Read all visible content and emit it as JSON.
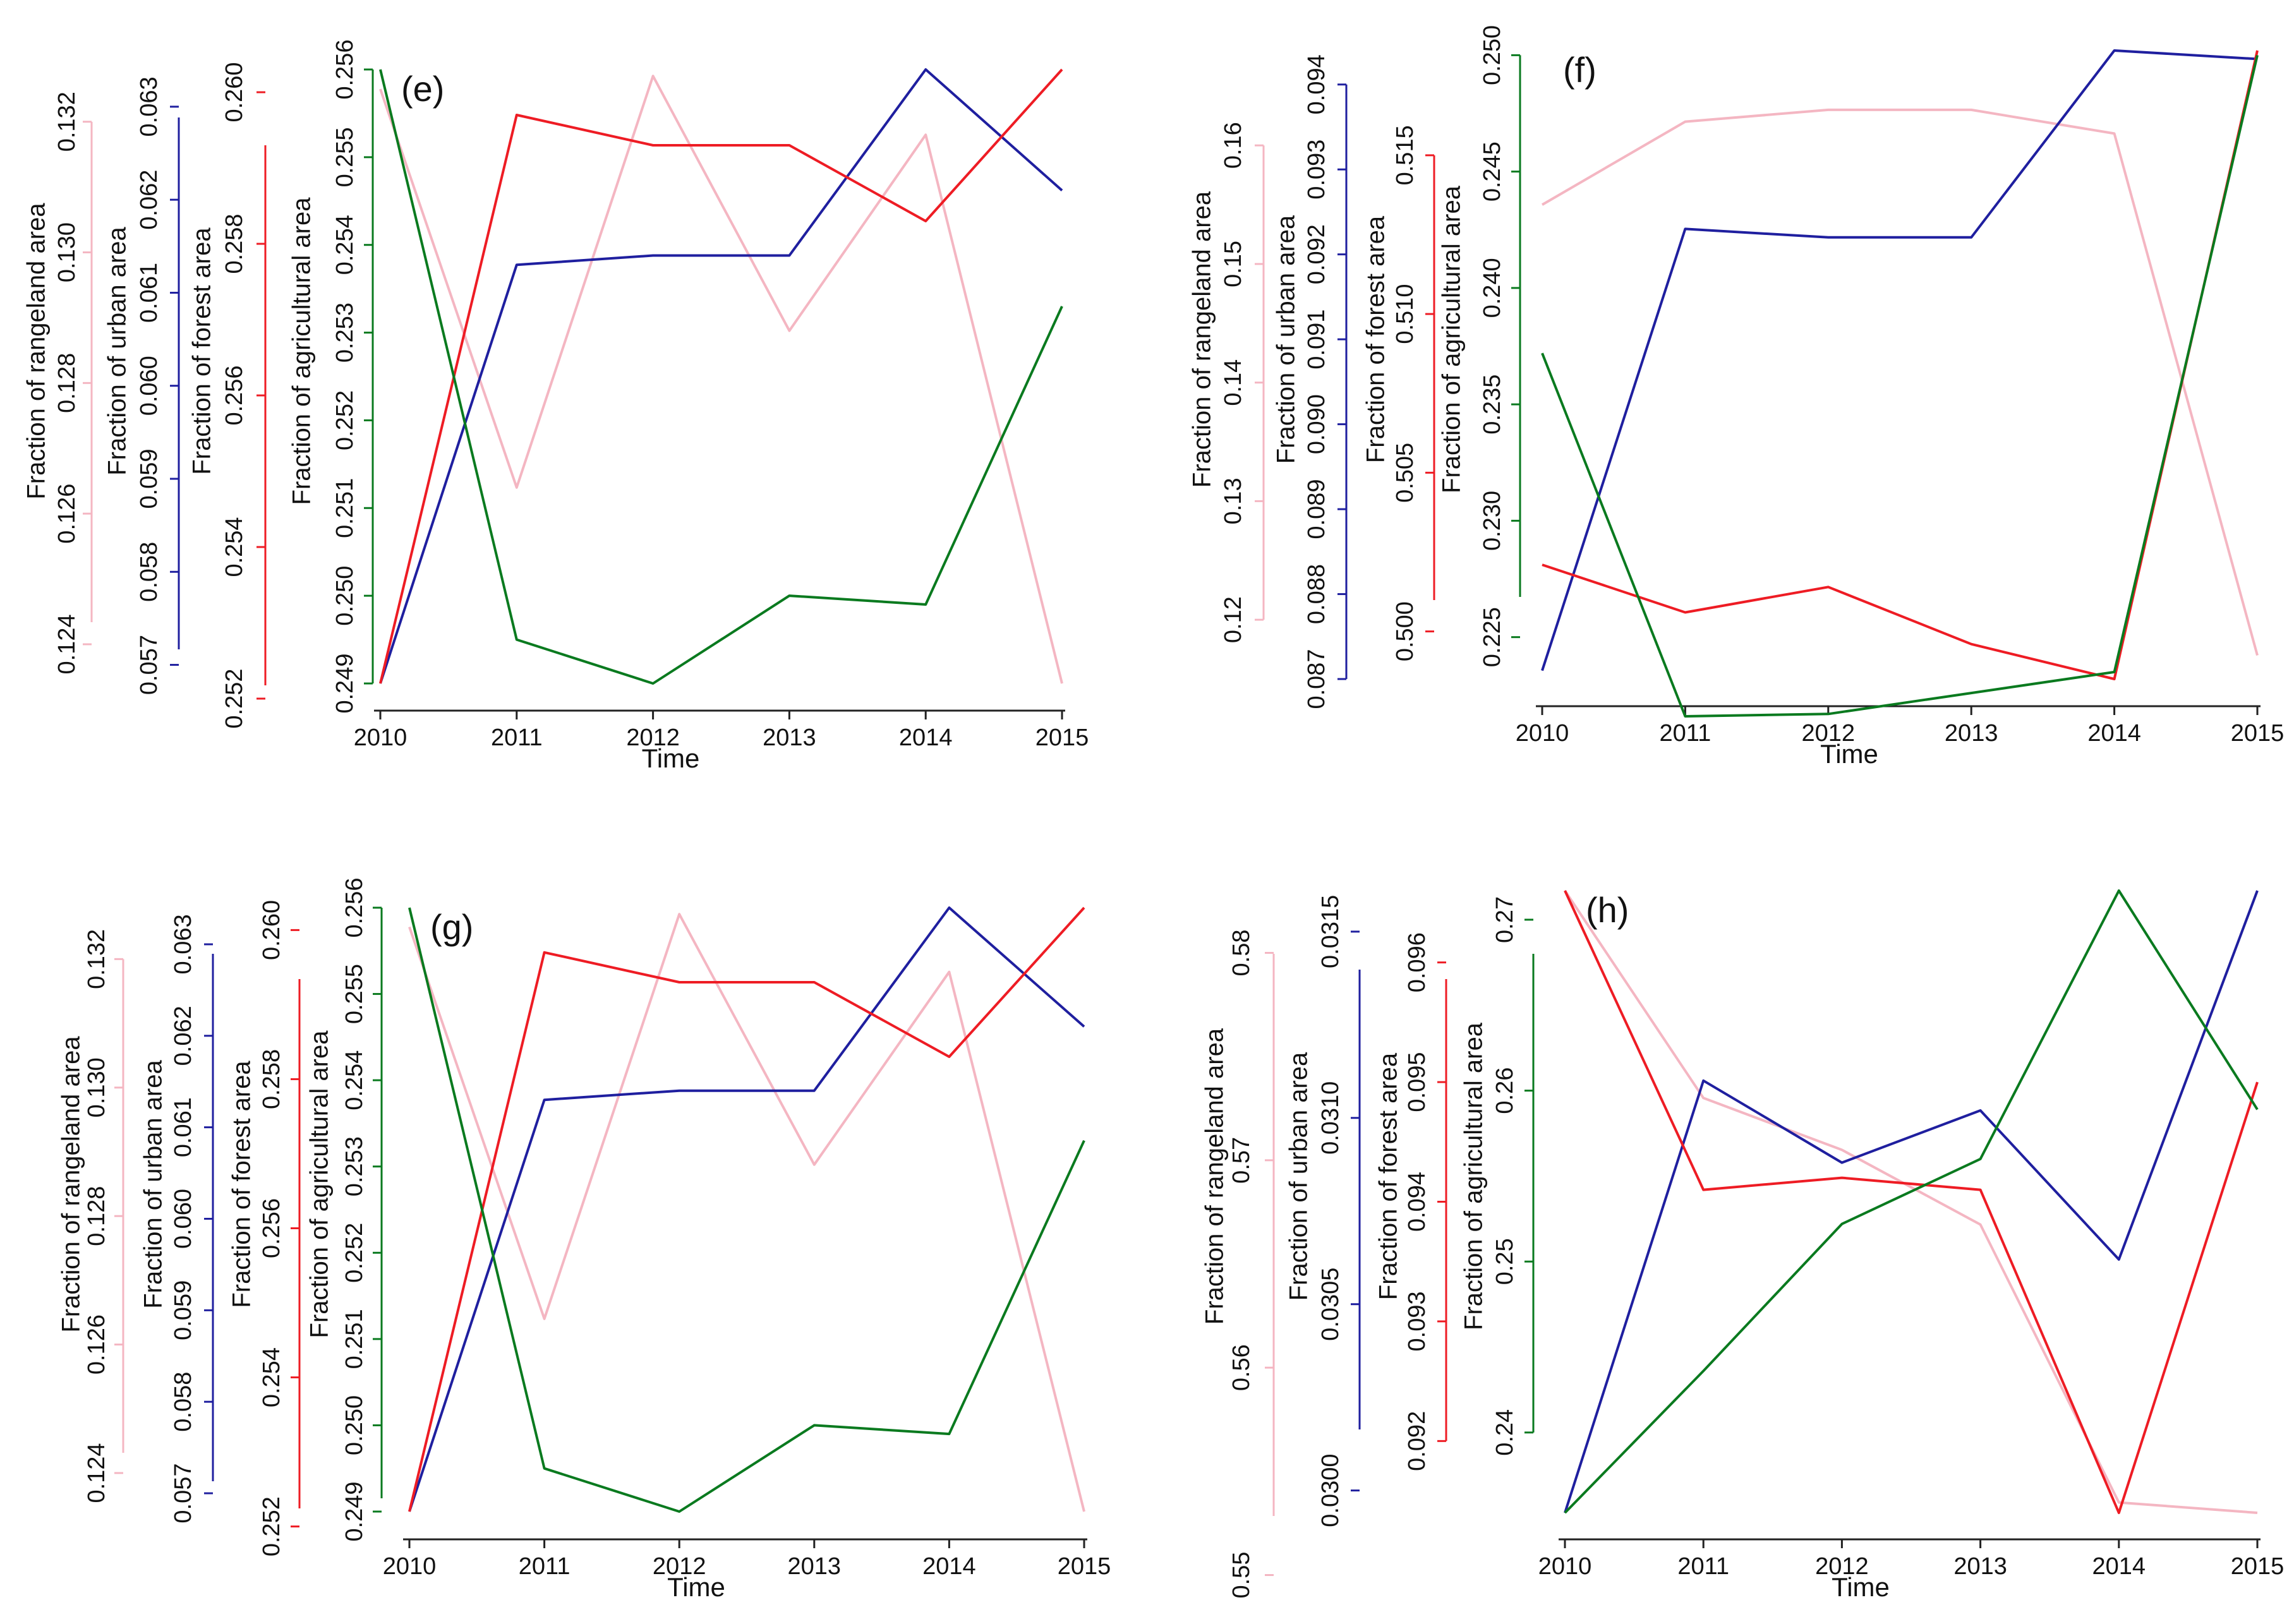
{
  "chart_data": [
    {
      "type": "line",
      "panel_label": "(e)",
      "x": [
        2010,
        2011,
        2012,
        2013,
        2014,
        2015
      ],
      "xlabel": "Time",
      "axes": [
        {
          "name": "Fraction of rangeland area",
          "color": "#f4b6c2",
          "ticks": [
            0.124,
            0.126,
            0.128,
            0.13,
            0.132
          ],
          "tick_labels": [
            "0.124",
            "0.126",
            "0.128",
            "0.130",
            "0.132"
          ],
          "ylim": [
            0.1234,
            0.1328
          ]
        },
        {
          "name": "Fraction of urban area",
          "color": "#1f1f9f",
          "ticks": [
            0.057,
            0.058,
            0.059,
            0.06,
            0.061,
            0.062,
            0.063
          ],
          "tick_labels": [
            "0.057",
            "0.058",
            "0.059",
            "0.060",
            "0.061",
            "0.062",
            "0.063"
          ],
          "ylim": [
            0.0568,
            0.0634
          ]
        },
        {
          "name": "Fraction of forest area",
          "color": "#ee1c24",
          "ticks": [
            0.252,
            0.254,
            0.256,
            0.258,
            0.26
          ],
          "tick_labels": [
            "0.252",
            "0.254",
            "0.256",
            "0.258",
            "0.260"
          ],
          "ylim": [
            0.2522,
            0.2603
          ]
        },
        {
          "name": "Fraction of agricultural area",
          "color": "#0a7a1f",
          "ticks": [
            0.249,
            0.25,
            0.251,
            0.252,
            0.253,
            0.254,
            0.255,
            0.256
          ],
          "tick_labels": [
            "0.249",
            "0.250",
            "0.251",
            "0.252",
            "0.253",
            "0.254",
            "0.255",
            "0.256"
          ],
          "ylim": [
            0.249,
            0.256
          ]
        }
      ],
      "series": [
        {
          "color": "#f4b6c2",
          "axis": 0,
          "values": [
            0.1325,
            0.1264,
            0.1327,
            0.1288,
            0.1318,
            0.1234
          ]
        },
        {
          "color": "#1f1f9f",
          "axis": 1,
          "values": [
            0.0568,
            0.0613,
            0.0614,
            0.0614,
            0.0634,
            0.0621
          ]
        },
        {
          "color": "#ee1c24",
          "axis": 2,
          "values": [
            0.2522,
            0.2597,
            0.2593,
            0.2593,
            0.2583,
            0.2603
          ]
        },
        {
          "color": "#0a7a1f",
          "axis": 3,
          "values": [
            0.256,
            0.2495,
            0.249,
            0.25,
            0.2499,
            0.2533
          ]
        }
      ]
    },
    {
      "type": "line",
      "panel_label": "(f)",
      "x": [
        2010,
        2011,
        2012,
        2013,
        2014,
        2015
      ],
      "xlabel": "Time",
      "axes": [
        {
          "name": "Fraction of rangeland area",
          "color": "#f4b6c2",
          "ticks": [
            0.12,
            0.13,
            0.14,
            0.15,
            0.16
          ],
          "tick_labels": [
            "0.12",
            "0.13",
            "0.14",
            "0.15",
            "0.16"
          ],
          "ylim": [
            0.115,
            0.168
          ]
        },
        {
          "name": "Fraction of urban area",
          "color": "#1f1f9f",
          "ticks": [
            0.087,
            0.088,
            0.089,
            0.09,
            0.091,
            0.092,
            0.093,
            0.094
          ],
          "tick_labels": [
            "0.087",
            "0.088",
            "0.089",
            "0.090",
            "0.091",
            "0.092",
            "0.093",
            "0.094"
          ],
          "ylim": [
            0.087,
            0.0944
          ]
        },
        {
          "name": "Fraction of forest area",
          "color": "#ee1c24",
          "ticks": [
            0.5,
            0.505,
            0.51,
            0.515
          ],
          "tick_labels": [
            "0.500",
            "0.505",
            "0.510",
            "0.515"
          ],
          "ylim": [
            0.4985,
            0.5183
          ]
        },
        {
          "name": "Fraction of agricultural area",
          "color": "#0a7a1f",
          "ticks": [
            0.225,
            0.23,
            0.235,
            0.24,
            0.245,
            0.25
          ],
          "tick_labels": [
            "0.225",
            "0.230",
            "0.235",
            "0.240",
            "0.245",
            "0.250"
          ],
          "ylim": [
            0.2232,
            0.2502
          ]
        }
      ],
      "series": [
        {
          "color": "#f4b6c2",
          "axis": 0,
          "values": [
            0.155,
            0.162,
            0.163,
            0.163,
            0.161,
            0.117
          ]
        },
        {
          "color": "#1f1f9f",
          "axis": 1,
          "values": [
            0.0871,
            0.0923,
            0.0922,
            0.0922,
            0.0944,
            0.0943
          ]
        },
        {
          "color": "#ee1c24",
          "axis": 2,
          "values": [
            0.5021,
            0.5006,
            0.5014,
            0.4996,
            0.4985,
            0.5183
          ]
        },
        {
          "color": "#0a7a1f",
          "axis": 3,
          "values": [
            0.2372,
            0.2216,
            0.2217,
            0.2226,
            0.2235,
            0.25
          ]
        }
      ]
    },
    {
      "type": "line",
      "panel_label": "(g)",
      "x": [
        2010,
        2011,
        2012,
        2013,
        2014,
        2015
      ],
      "xlabel": "Time",
      "axes": [
        {
          "name": "Fraction of rangeland area",
          "color": "#f4b6c2",
          "ticks": [
            0.124,
            0.126,
            0.128,
            0.13,
            0.132
          ],
          "tick_labels": [
            "0.124",
            "0.126",
            "0.128",
            "0.130",
            "0.132"
          ],
          "ylim": [
            0.1234,
            0.1328
          ]
        },
        {
          "name": "Fraction of urban area",
          "color": "#1f1f9f",
          "ticks": [
            0.057,
            0.058,
            0.059,
            0.06,
            0.061,
            0.062,
            0.063
          ],
          "tick_labels": [
            "0.057",
            "0.058",
            "0.059",
            "0.060",
            "0.061",
            "0.062",
            "0.063"
          ],
          "ylim": [
            0.0568,
            0.0634
          ]
        },
        {
          "name": "Fraction of forest area",
          "color": "#ee1c24",
          "ticks": [
            0.252,
            0.254,
            0.256,
            0.258,
            0.26
          ],
          "tick_labels": [
            "0.252",
            "0.254",
            "0.256",
            "0.258",
            "0.260"
          ],
          "ylim": [
            0.2522,
            0.2603
          ]
        },
        {
          "name": "Fraction of agricultural area",
          "color": "#0a7a1f",
          "ticks": [
            0.249,
            0.25,
            0.251,
            0.252,
            0.253,
            0.254,
            0.255,
            0.256
          ],
          "tick_labels": [
            "0.249",
            "0.250",
            "0.251",
            "0.252",
            "0.253",
            "0.254",
            "0.255",
            "0.256"
          ],
          "ylim": [
            0.249,
            0.256
          ]
        }
      ],
      "series": [
        {
          "color": "#f4b6c2",
          "axis": 0,
          "values": [
            0.1325,
            0.1264,
            0.1327,
            0.1288,
            0.1318,
            0.1234
          ]
        },
        {
          "color": "#1f1f9f",
          "axis": 1,
          "values": [
            0.0568,
            0.0613,
            0.0614,
            0.0614,
            0.0634,
            0.0621
          ]
        },
        {
          "color": "#ee1c24",
          "axis": 2,
          "values": [
            0.2522,
            0.2597,
            0.2593,
            0.2593,
            0.2583,
            0.2603
          ]
        },
        {
          "color": "#0a7a1f",
          "axis": 3,
          "values": [
            0.256,
            0.2495,
            0.249,
            0.25,
            0.2499,
            0.2533
          ]
        }
      ]
    },
    {
      "type": "line",
      "panel_label": "(h)",
      "x": [
        2010,
        2011,
        2012,
        2013,
        2014,
        2015
      ],
      "xlabel": "Time",
      "axes": [
        {
          "name": "Fraction of rangeland area",
          "color": "#f4b6c2",
          "ticks": [
            0.55,
            0.56,
            0.57,
            0.58
          ],
          "tick_labels": [
            "0.55",
            "0.56",
            "0.57",
            "0.58"
          ],
          "ylim": [
            0.553,
            0.583
          ]
        },
        {
          "name": "Fraction of urban area",
          "color": "#1f1f9f",
          "ticks": [
            0.03,
            0.0305,
            0.031,
            0.0315
          ],
          "tick_labels": [
            "0.0300",
            "0.0305",
            "0.0310",
            "0.0315"
          ],
          "ylim": [
            0.02994,
            0.03161
          ]
        },
        {
          "name": "Fraction of forest area",
          "color": "#ee1c24",
          "ticks": [
            0.092,
            0.093,
            0.094,
            0.095,
            0.096
          ],
          "tick_labels": [
            "0.092",
            "0.093",
            "0.094",
            "0.095",
            "0.096"
          ],
          "ylim": [
            0.0914,
            0.0966
          ]
        },
        {
          "name": "Fraction of agricultural area",
          "color": "#0a7a1f",
          "ticks": [
            0.24,
            0.25,
            0.26,
            0.27
          ],
          "tick_labels": [
            "0.24",
            "0.25",
            "0.26",
            "0.27"
          ],
          "ylim": [
            0.2353,
            0.2717
          ]
        }
      ],
      "series": [
        {
          "color": "#f4b6c2",
          "axis": 0,
          "values": [
            0.583,
            0.573,
            0.5705,
            0.5669,
            0.5535,
            0.553
          ]
        },
        {
          "color": "#1f1f9f",
          "axis": 1,
          "values": [
            0.02994,
            0.0311,
            0.03088,
            0.03102,
            0.03062,
            0.03161
          ]
        },
        {
          "color": "#ee1c24",
          "axis": 2,
          "values": [
            0.0966,
            0.0941,
            0.0942,
            0.0941,
            0.0914,
            0.095
          ]
        },
        {
          "color": "#0a7a1f",
          "axis": 3,
          "values": [
            0.2353,
            0.2436,
            0.2522,
            0.256,
            0.2717,
            0.2589
          ]
        }
      ]
    }
  ]
}
